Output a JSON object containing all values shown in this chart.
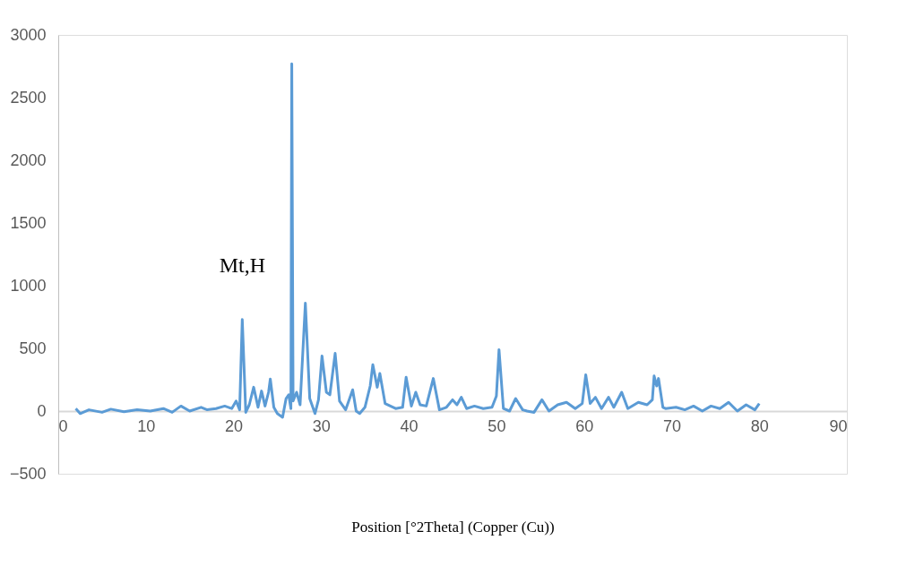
{
  "chart_data": {
    "type": "line",
    "xlabel": "Position [°2Theta] (Copper (Cu))",
    "annotations": [
      {
        "text": "Mt,H",
        "x": 21.0,
        "y": 730
      }
    ],
    "xlim": [
      0,
      90
    ],
    "xticks": [
      0,
      10,
      20,
      30,
      40,
      50,
      60,
      70,
      80,
      90
    ],
    "ylim": [
      -500,
      3000
    ],
    "yticks": [
      -500,
      0,
      500,
      1000,
      1500,
      2000,
      2500,
      3000
    ],
    "grid": false,
    "series": [
      {
        "color": "#5b9bd5",
        "x": [
          2.0,
          2.5,
          3.5,
          5,
          6,
          7.5,
          9,
          10.5,
          12,
          13,
          14,
          15,
          16.3,
          17,
          18,
          19,
          19.8,
          20.3,
          20.7,
          21.0,
          21.4,
          21.8,
          22.3,
          22.8,
          23.2,
          23.6,
          24.0,
          24.2,
          24.6,
          25.0,
          25.6,
          26.0,
          26.3,
          26.55,
          26.65,
          26.8,
          27.2,
          27.6,
          28.2,
          28.7,
          29.3,
          29.7,
          30.1,
          30.6,
          31.0,
          31.6,
          32.1,
          32.8,
          33.6,
          34.0,
          34.4,
          35.0,
          35.6,
          35.9,
          36.4,
          36.7,
          37.3,
          38.5,
          39.3,
          39.7,
          40.3,
          40.8,
          41.3,
          42.0,
          42.8,
          43.5,
          44.3,
          45.0,
          45.5,
          46.0,
          46.6,
          47.5,
          48.5,
          49.5,
          50.0,
          50.3,
          50.8,
          51.5,
          52.2,
          53.0,
          53.5,
          54.3,
          55.2,
          56.0,
          57.0,
          58.0,
          59.0,
          59.8,
          60.2,
          60.7,
          61.3,
          62.0,
          62.8,
          63.4,
          64.3,
          65.0,
          66.2,
          67.2,
          67.8,
          68.0,
          68.3,
          68.5,
          69.0,
          69.3,
          70.5,
          71.5,
          72.5,
          73.5,
          74.5,
          75.5,
          76.5,
          77.5,
          78.5,
          79.5,
          80.0
        ],
        "values": [
          20,
          -20,
          10,
          -10,
          15,
          -5,
          10,
          0,
          20,
          -10,
          40,
          0,
          30,
          10,
          20,
          40,
          20,
          80,
          10,
          730,
          -10,
          50,
          190,
          30,
          160,
          40,
          150,
          255,
          30,
          -20,
          -50,
          100,
          130,
          20,
          2770,
          80,
          150,
          50,
          860,
          100,
          -20,
          90,
          440,
          150,
          130,
          460,
          80,
          10,
          170,
          0,
          -20,
          30,
          200,
          370,
          190,
          300,
          60,
          20,
          30,
          270,
          40,
          150,
          50,
          40,
          260,
          10,
          30,
          90,
          50,
          110,
          20,
          40,
          20,
          30,
          120,
          490,
          20,
          0,
          100,
          10,
          0,
          -10,
          90,
          0,
          50,
          70,
          20,
          60,
          290,
          60,
          110,
          20,
          110,
          30,
          150,
          20,
          70,
          50,
          90,
          280,
          200,
          260,
          30,
          20,
          30,
          10,
          40,
          0,
          40,
          20,
          70,
          0,
          50,
          10,
          60
        ]
      }
    ]
  }
}
